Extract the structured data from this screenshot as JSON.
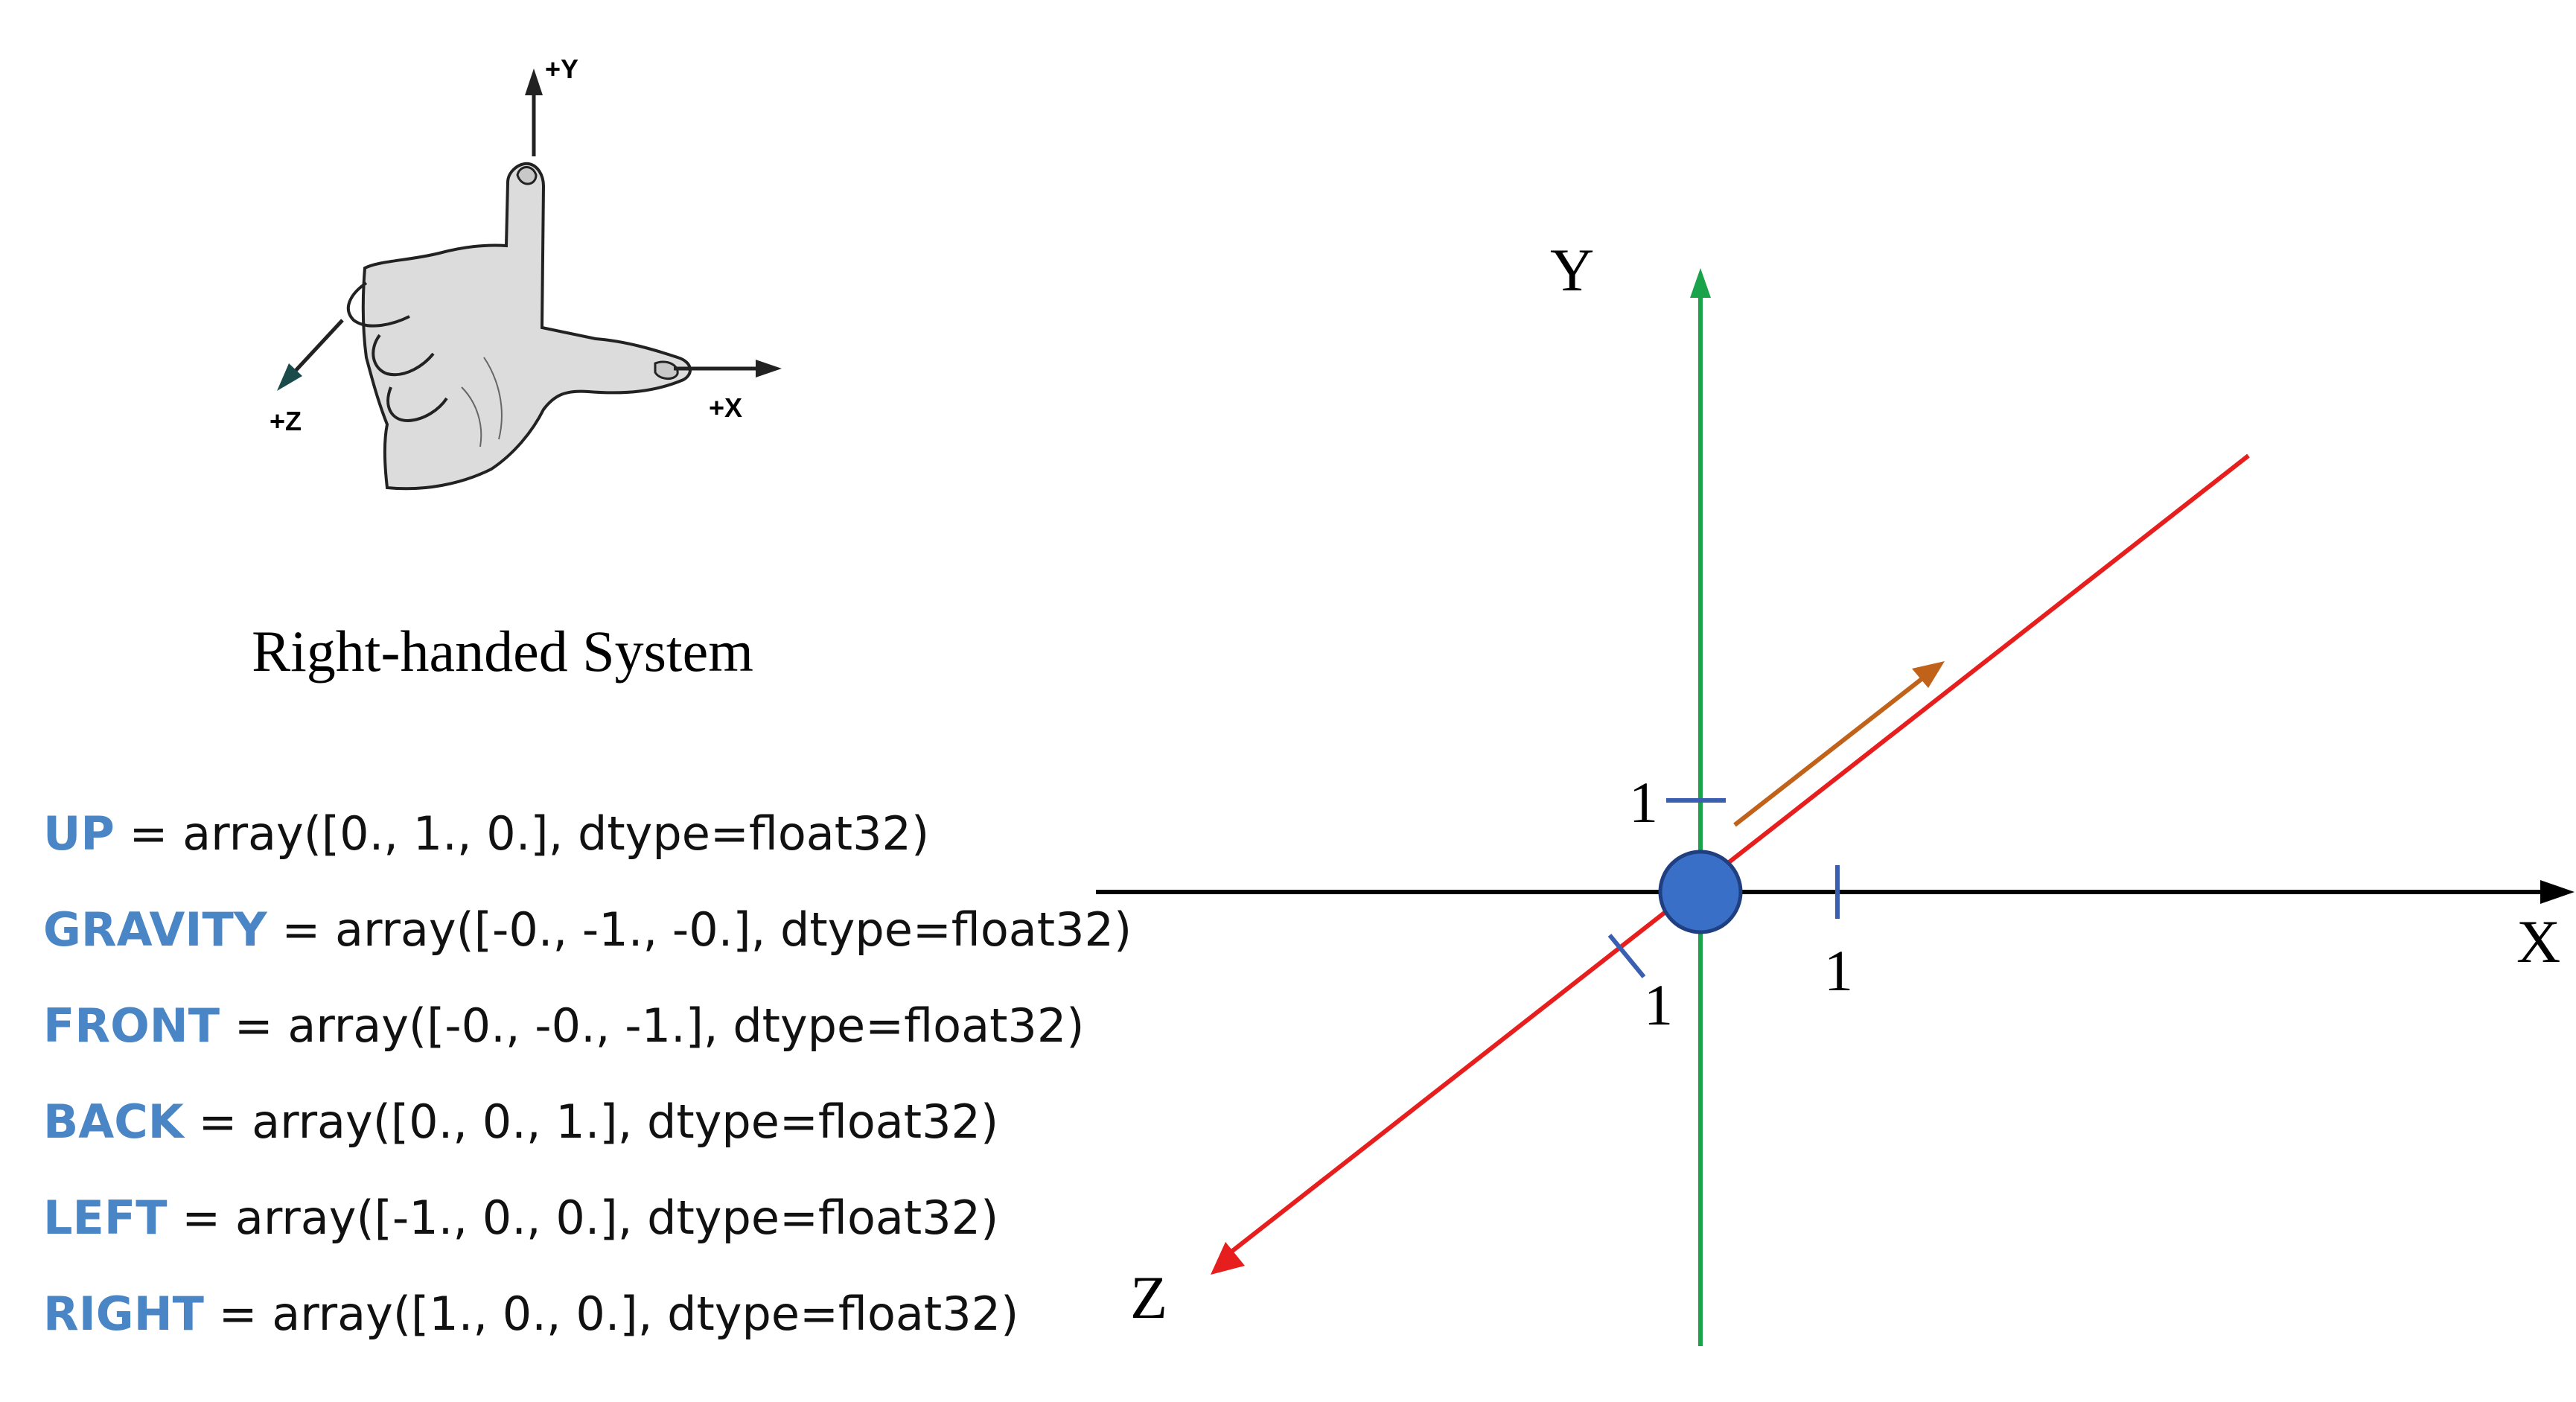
{
  "hand": {
    "labels": {
      "y": "+Y",
      "x": "+X",
      "z": "+Z"
    }
  },
  "caption": "Right-handed System",
  "vectors": [
    {
      "name": "UP",
      "expr": "= array([0., 1., 0.], dtype=float32)"
    },
    {
      "name": "GRAVITY",
      "expr": "= array([-0., -1., -0.], dtype=float32)"
    },
    {
      "name": "FRONT",
      "expr": "= array([-0., -0., -1.], dtype=float32)"
    },
    {
      "name": "BACK",
      "expr": "= array([0., 0., 1.], dtype=float32)"
    },
    {
      "name": "LEFT",
      "expr": "= array([-1., 0., 0.], dtype=float32)"
    },
    {
      "name": "RIGHT",
      "expr": "= array([1., 0., 0.], dtype=float32)"
    }
  ],
  "axes": {
    "x_label": "X",
    "y_label": "Y",
    "z_label": "Z",
    "tick_x": "1",
    "tick_y": "1",
    "tick_z": "1"
  },
  "colors": {
    "vector_name": "#4a86c5",
    "x_axis": "#000000",
    "y_axis": "#1aa34a",
    "z_axis": "#e61e1e",
    "arrow": "#c0621a",
    "origin_fill": "#3a6fc8",
    "tick": "#3a5fb0",
    "hand_fill": "#dcdcdc"
  }
}
